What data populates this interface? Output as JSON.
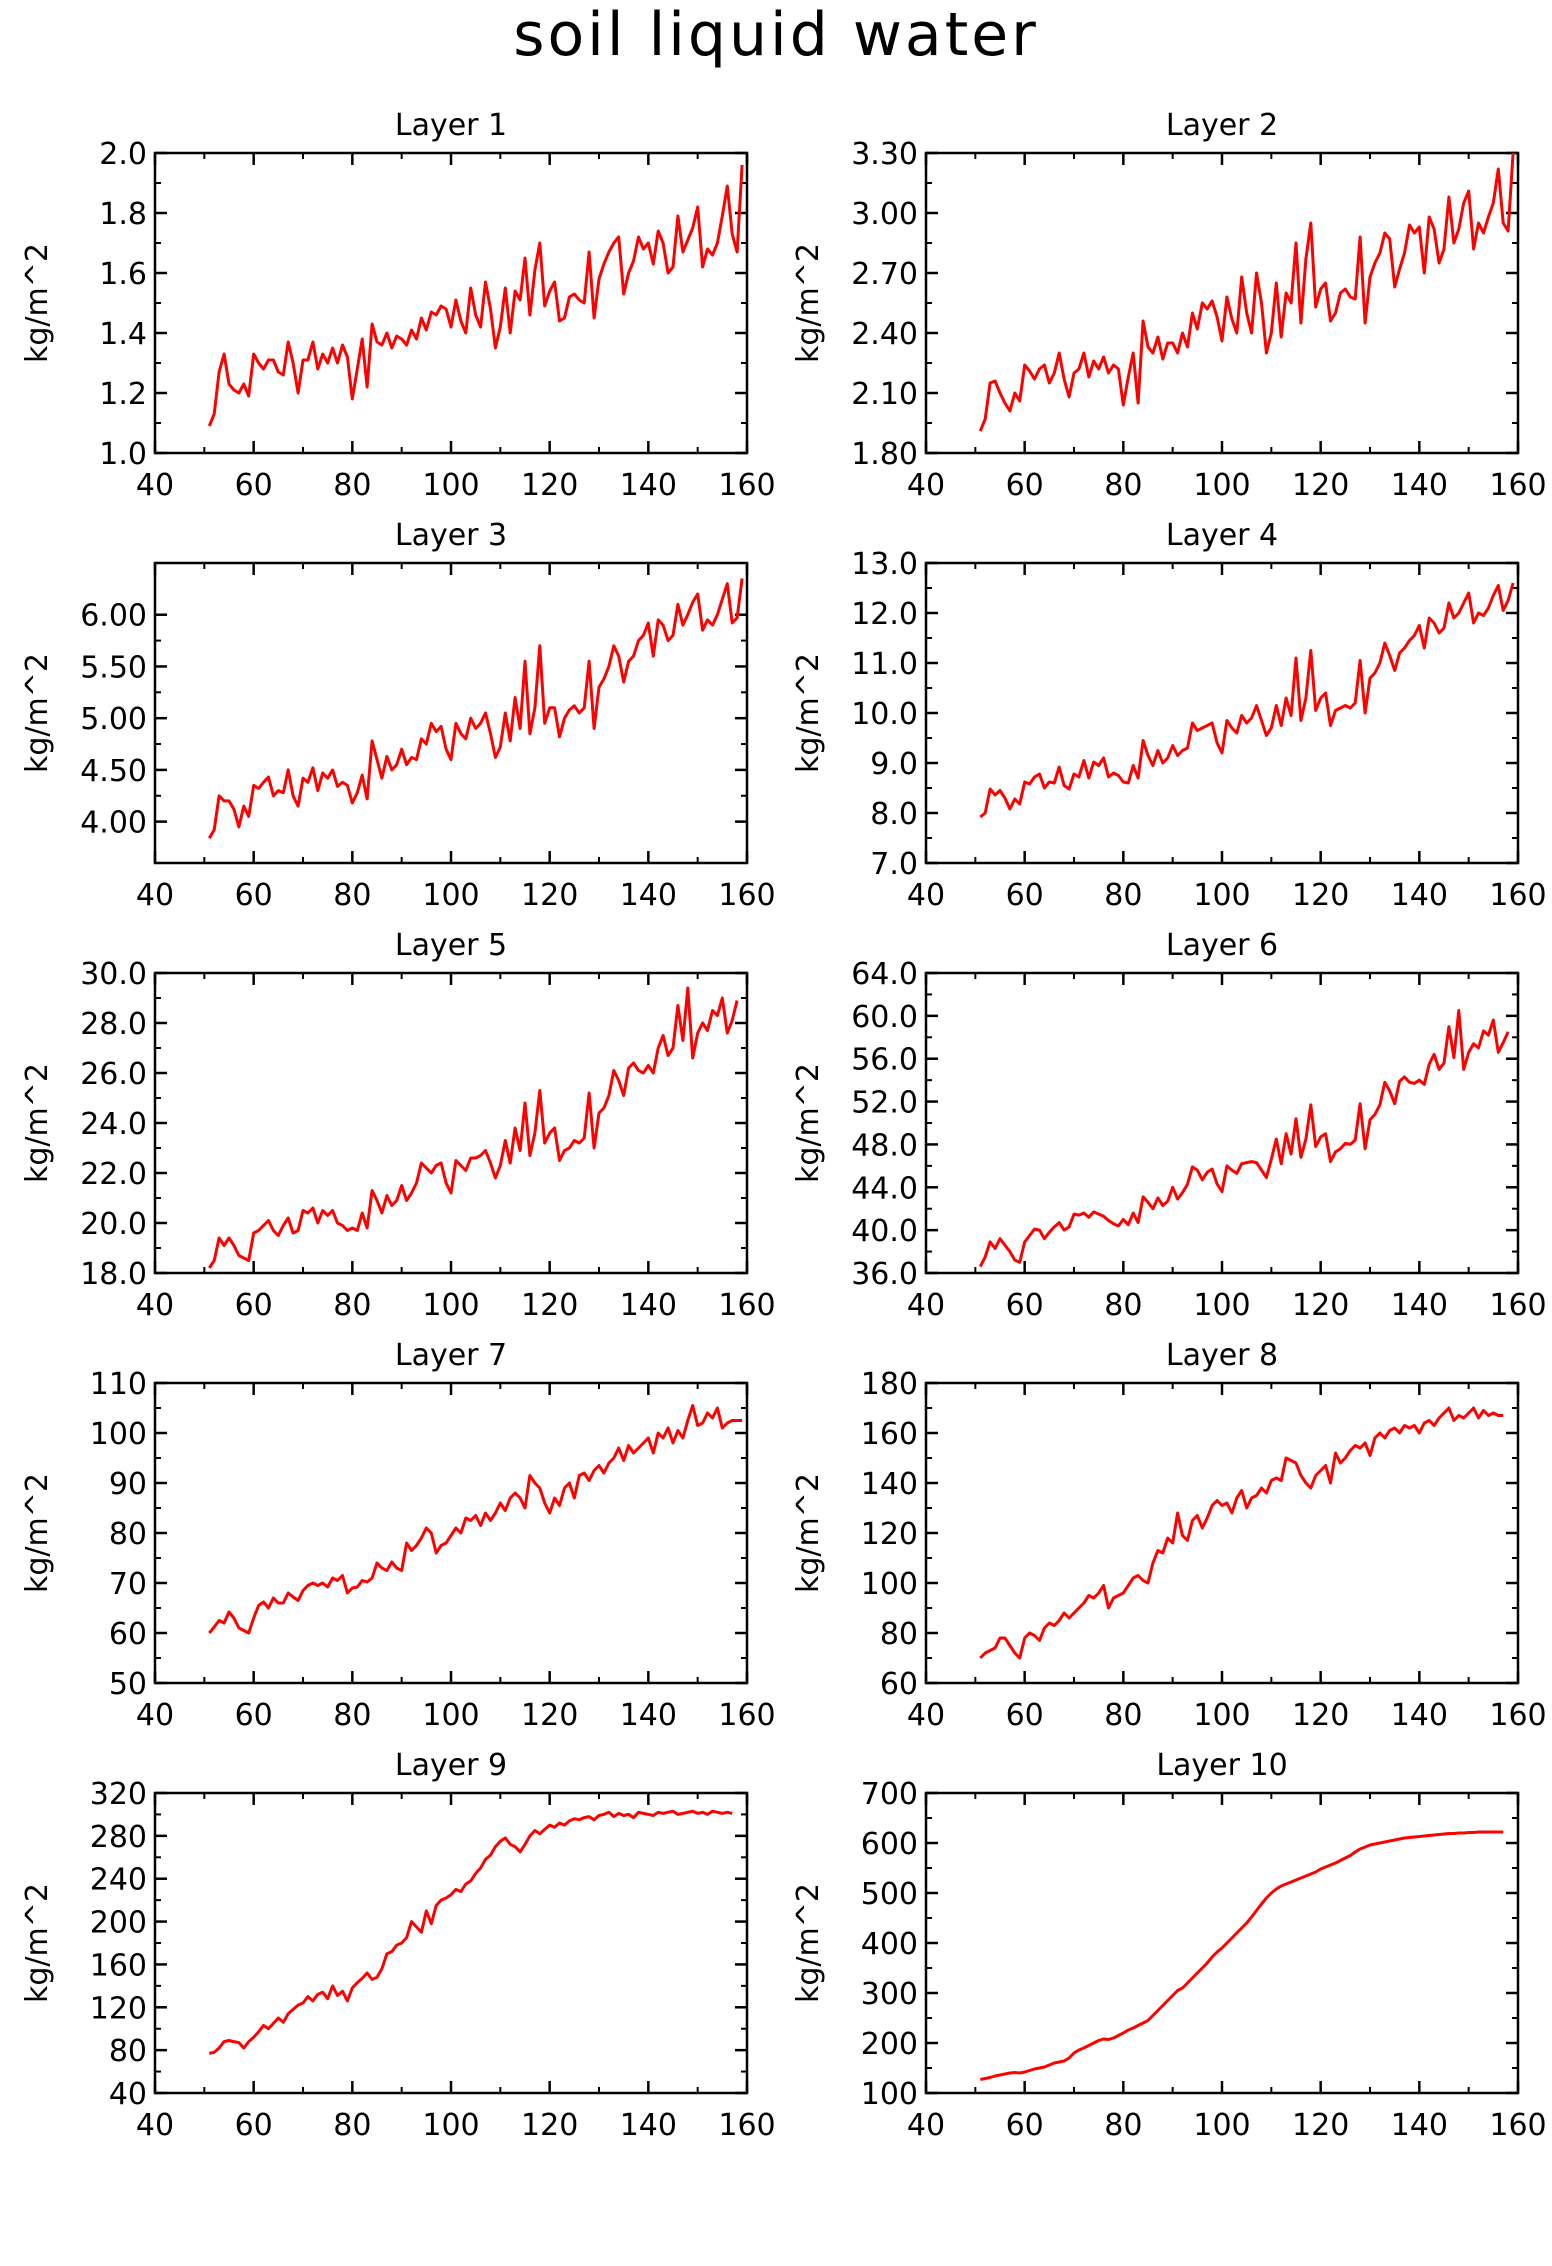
{
  "figure": {
    "title": "soil liquid water",
    "line_color": "#ff0000"
  },
  "chart_data": [
    {
      "type": "line",
      "title": "Layer 1",
      "ylabel": "kg/m^2",
      "xlim": [
        40,
        160
      ],
      "xticks": [
        40,
        60,
        80,
        100,
        120,
        140,
        160
      ],
      "ylim": [
        1.0,
        2.0
      ],
      "yticks": [
        "1.0",
        "1.2",
        "1.4",
        "1.6",
        "1.8",
        "2.0"
      ],
      "x_start": 51,
      "x_step": 1,
      "values": [
        1.09,
        1.13,
        1.27,
        1.33,
        1.23,
        1.21,
        1.2,
        1.23,
        1.19,
        1.33,
        1.3,
        1.28,
        1.31,
        1.31,
        1.27,
        1.26,
        1.37,
        1.3,
        1.2,
        1.31,
        1.31,
        1.37,
        1.28,
        1.33,
        1.3,
        1.35,
        1.3,
        1.36,
        1.32,
        1.18,
        1.28,
        1.38,
        1.22,
        1.43,
        1.37,
        1.36,
        1.4,
        1.35,
        1.39,
        1.38,
        1.36,
        1.41,
        1.38,
        1.45,
        1.41,
        1.47,
        1.46,
        1.49,
        1.48,
        1.42,
        1.51,
        1.44,
        1.4,
        1.55,
        1.46,
        1.42,
        1.57,
        1.48,
        1.35,
        1.42,
        1.55,
        1.4,
        1.54,
        1.51,
        1.65,
        1.46,
        1.61,
        1.7,
        1.49,
        1.54,
        1.57,
        1.44,
        1.45,
        1.52,
        1.53,
        1.51,
        1.5,
        1.67,
        1.45,
        1.58,
        1.63,
        1.67,
        1.7,
        1.72,
        1.53,
        1.6,
        1.64,
        1.72,
        1.68,
        1.7,
        1.63,
        1.74,
        1.7,
        1.6,
        1.62,
        1.79,
        1.67,
        1.71,
        1.75,
        1.82,
        1.62,
        1.68,
        1.66,
        1.7,
        1.79,
        1.89,
        1.73,
        1.67,
        1.96
      ]
    },
    {
      "type": "line",
      "title": "Layer 2",
      "ylabel": "kg/m^2",
      "xlim": [
        40,
        160
      ],
      "xticks": [
        40,
        60,
        80,
        100,
        120,
        140,
        160
      ],
      "ylim": [
        1.8,
        3.3
      ],
      "yticks": [
        "1.80",
        "2.10",
        "2.40",
        "2.70",
        "3.00",
        "3.30"
      ],
      "x_start": 51,
      "x_step": 1,
      "values": [
        1.91,
        1.97,
        2.15,
        2.16,
        2.1,
        2.05,
        2.01,
        2.1,
        2.06,
        2.24,
        2.21,
        2.17,
        2.22,
        2.24,
        2.15,
        2.2,
        2.3,
        2.17,
        2.08,
        2.2,
        2.22,
        2.3,
        2.18,
        2.26,
        2.22,
        2.28,
        2.2,
        2.24,
        2.22,
        2.04,
        2.18,
        2.3,
        2.05,
        2.46,
        2.33,
        2.3,
        2.38,
        2.27,
        2.35,
        2.35,
        2.3,
        2.4,
        2.33,
        2.5,
        2.42,
        2.55,
        2.52,
        2.56,
        2.48,
        2.36,
        2.58,
        2.47,
        2.4,
        2.68,
        2.5,
        2.4,
        2.7,
        2.55,
        2.3,
        2.4,
        2.65,
        2.38,
        2.6,
        2.55,
        2.85,
        2.45,
        2.77,
        2.95,
        2.53,
        2.62,
        2.65,
        2.46,
        2.5,
        2.6,
        2.62,
        2.58,
        2.57,
        2.88,
        2.45,
        2.68,
        2.75,
        2.8,
        2.9,
        2.87,
        2.63,
        2.72,
        2.8,
        2.94,
        2.9,
        2.93,
        2.7,
        2.98,
        2.92,
        2.75,
        2.82,
        3.08,
        2.85,
        2.92,
        3.05,
        3.11,
        2.82,
        2.95,
        2.9,
        2.98,
        3.05,
        3.22,
        2.95,
        2.91,
        3.3
      ]
    },
    {
      "type": "line",
      "title": "Layer 3",
      "ylabel": "kg/m^2",
      "xlim": [
        40,
        160
      ],
      "xticks": [
        40,
        60,
        80,
        100,
        120,
        140,
        160
      ],
      "ylim": [
        3.6,
        6.5
      ],
      "yticks": [
        "4.00",
        "4.50",
        "5.00",
        "5.50",
        "6.00"
      ],
      "ytick_values": [
        4.0,
        4.5,
        5.0,
        5.5,
        6.0
      ],
      "x_start": 51,
      "x_step": 1,
      "values": [
        3.84,
        3.92,
        4.25,
        4.2,
        4.2,
        4.12,
        3.95,
        4.15,
        4.05,
        4.35,
        4.32,
        4.38,
        4.43,
        4.25,
        4.3,
        4.28,
        4.5,
        4.25,
        4.15,
        4.42,
        4.38,
        4.52,
        4.3,
        4.47,
        4.42,
        4.5,
        4.34,
        4.38,
        4.35,
        4.18,
        4.28,
        4.45,
        4.22,
        4.78,
        4.6,
        4.42,
        4.63,
        4.5,
        4.55,
        4.7,
        4.55,
        4.62,
        4.6,
        4.8,
        4.75,
        4.95,
        4.87,
        4.92,
        4.7,
        4.6,
        4.95,
        4.85,
        4.8,
        5.0,
        4.9,
        4.95,
        5.05,
        4.85,
        4.62,
        4.72,
        5.05,
        4.78,
        5.2,
        4.9,
        5.55,
        4.85,
        5.1,
        5.7,
        4.95,
        5.1,
        5.1,
        4.82,
        5.0,
        5.08,
        5.12,
        5.05,
        5.1,
        5.55,
        4.9,
        5.3,
        5.38,
        5.5,
        5.7,
        5.6,
        5.35,
        5.55,
        5.6,
        5.75,
        5.8,
        5.92,
        5.6,
        5.95,
        5.9,
        5.75,
        5.8,
        6.1,
        5.9,
        6.0,
        6.12,
        6.2,
        5.85,
        5.95,
        5.9,
        6.0,
        6.15,
        6.3,
        5.92,
        5.97,
        6.35
      ]
    },
    {
      "type": "line",
      "title": "Layer 4",
      "ylabel": "kg/m^2",
      "xlim": [
        40,
        160
      ],
      "xticks": [
        40,
        60,
        80,
        100,
        120,
        140,
        160
      ],
      "ylim": [
        7.0,
        13.0
      ],
      "yticks": [
        "7.0",
        "8.0",
        "9.0",
        "10.0",
        "11.0",
        "12.0",
        "13.0"
      ],
      "x_start": 51,
      "x_step": 1,
      "values": [
        7.92,
        8.0,
        8.48,
        8.36,
        8.45,
        8.3,
        8.08,
        8.28,
        8.18,
        8.62,
        8.58,
        8.72,
        8.78,
        8.5,
        8.62,
        8.6,
        8.92,
        8.55,
        8.48,
        8.78,
        8.72,
        9.05,
        8.7,
        9.02,
        8.95,
        9.1,
        8.72,
        8.8,
        8.75,
        8.62,
        8.6,
        8.95,
        8.7,
        9.45,
        9.15,
        8.95,
        9.25,
        9.0,
        9.1,
        9.35,
        9.15,
        9.25,
        9.3,
        9.8,
        9.65,
        9.7,
        9.75,
        9.8,
        9.4,
        9.2,
        9.85,
        9.7,
        9.6,
        9.95,
        9.8,
        9.9,
        10.15,
        9.85,
        9.55,
        9.7,
        10.15,
        9.75,
        10.3,
        9.95,
        11.1,
        9.85,
        10.3,
        11.25,
        10.05,
        10.3,
        10.4,
        9.75,
        10.05,
        10.1,
        10.15,
        10.1,
        10.2,
        11.05,
        10.0,
        10.7,
        10.8,
        11.0,
        11.4,
        11.15,
        10.85,
        11.2,
        11.3,
        11.45,
        11.55,
        11.75,
        11.3,
        11.9,
        11.8,
        11.6,
        11.7,
        12.2,
        11.9,
        12.0,
        12.2,
        12.4,
        11.8,
        12.0,
        11.95,
        12.1,
        12.35,
        12.55,
        12.05,
        12.25,
        12.6
      ]
    },
    {
      "type": "line",
      "title": "Layer 5",
      "ylabel": "kg/m^2",
      "xlim": [
        40,
        160
      ],
      "xticks": [
        40,
        60,
        80,
        100,
        120,
        140,
        160
      ],
      "ylim": [
        18.0,
        30.0
      ],
      "yticks": [
        "18.0",
        "20.0",
        "22.0",
        "24.0",
        "26.0",
        "28.0",
        "30.0"
      ],
      "x_start": 51,
      "x_step": 1,
      "values": [
        18.2,
        18.5,
        19.4,
        19.1,
        19.4,
        19.1,
        18.7,
        18.6,
        18.5,
        19.6,
        19.7,
        19.9,
        20.1,
        19.7,
        19.5,
        19.9,
        20.2,
        19.6,
        19.7,
        20.5,
        20.4,
        20.6,
        20.0,
        20.5,
        20.3,
        20.5,
        20.0,
        19.9,
        19.7,
        19.8,
        19.7,
        20.4,
        19.8,
        21.3,
        20.9,
        20.4,
        21.1,
        20.7,
        20.9,
        21.5,
        20.9,
        21.2,
        21.6,
        22.4,
        22.2,
        22.0,
        22.3,
        22.4,
        21.6,
        21.2,
        22.5,
        22.3,
        22.1,
        22.6,
        22.6,
        22.7,
        22.9,
        22.4,
        21.8,
        22.3,
        23.3,
        22.4,
        23.8,
        22.9,
        24.8,
        22.7,
        23.6,
        25.3,
        23.2,
        23.6,
        23.8,
        22.5,
        22.9,
        23.0,
        23.3,
        23.2,
        23.4,
        25.2,
        23.0,
        24.4,
        24.6,
        25.1,
        26.1,
        25.7,
        25.1,
        26.2,
        26.4,
        26.1,
        26.0,
        26.3,
        26.0,
        27.0,
        27.5,
        26.7,
        27.0,
        28.7,
        27.3,
        29.4,
        26.6,
        27.6,
        28.0,
        27.7,
        28.5,
        28.3,
        29.0,
        27.6,
        28.1,
        28.9
      ]
    },
    {
      "type": "line",
      "title": "Layer 6",
      "ylabel": "kg/m^2",
      "xlim": [
        40,
        160
      ],
      "xticks": [
        40,
        60,
        80,
        100,
        120,
        140,
        160
      ],
      "ylim": [
        36.0,
        64.0
      ],
      "yticks": [
        "36.0",
        "40.0",
        "44.0",
        "48.0",
        "52.0",
        "56.0",
        "60.0",
        "64.0"
      ],
      "x_start": 51,
      "x_step": 1,
      "values": [
        36.6,
        37.5,
        38.9,
        38.3,
        39.2,
        38.6,
        38.0,
        37.2,
        37.0,
        38.9,
        39.5,
        40.1,
        40.0,
        39.2,
        39.8,
        40.3,
        40.7,
        40.0,
        40.3,
        41.5,
        41.4,
        41.6,
        41.2,
        41.7,
        41.5,
        41.3,
        40.9,
        40.6,
        40.4,
        41.0,
        40.5,
        41.6,
        40.7,
        43.1,
        42.6,
        42.0,
        43.0,
        42.3,
        42.7,
        44.0,
        42.9,
        43.5,
        44.3,
        45.9,
        45.6,
        44.7,
        45.4,
        45.7,
        44.3,
        43.6,
        46.0,
        45.6,
        45.3,
        46.2,
        46.3,
        46.4,
        46.3,
        45.6,
        44.9,
        46.6,
        48.5,
        46.2,
        49.0,
        47.1,
        50.4,
        46.8,
        48.5,
        51.7,
        47.8,
        48.7,
        49.0,
        46.4,
        47.3,
        47.6,
        48.1,
        48.0,
        48.4,
        51.8,
        47.6,
        50.3,
        50.8,
        51.7,
        53.8,
        53.0,
        51.8,
        53.9,
        54.3,
        53.8,
        53.7,
        54.0,
        53.6,
        55.5,
        56.4,
        55.0,
        55.6,
        59.0,
        56.1,
        60.5,
        55.0,
        56.6,
        57.4,
        57.0,
        58.6,
        58.2,
        59.6,
        56.6,
        57.5,
        58.5
      ]
    },
    {
      "type": "line",
      "title": "Layer 7",
      "ylabel": "kg/m^2",
      "xlim": [
        40,
        160
      ],
      "xticks": [
        40,
        60,
        80,
        100,
        120,
        140,
        160
      ],
      "ylim": [
        50,
        110
      ],
      "yticks": [
        "50",
        "60",
        "70",
        "80",
        "90",
        "100",
        "110"
      ],
      "x_start": 51,
      "x_step": 1,
      "values": [
        60.0,
        61.2,
        62.5,
        62.0,
        64.2,
        63.0,
        61.0,
        60.5,
        60.0,
        63.0,
        65.5,
        66.2,
        65.0,
        67.0,
        66.0,
        66.0,
        68.0,
        67.2,
        66.5,
        68.5,
        69.5,
        70.0,
        69.5,
        70.0,
        69.2,
        71.0,
        70.5,
        71.5,
        68.0,
        69.0,
        69.2,
        70.5,
        70.2,
        71.0,
        74.0,
        73.0,
        72.5,
        74.2,
        73.0,
        72.5,
        78.0,
        76.5,
        77.5,
        79.0,
        81.0,
        80.0,
        76.0,
        77.5,
        78.0,
        79.5,
        81.0,
        80.0,
        83.0,
        82.5,
        83.5,
        81.5,
        84.0,
        82.5,
        84.0,
        86.0,
        84.5,
        87.0,
        88.0,
        87.0,
        85.0,
        91.5,
        90.0,
        89.0,
        86.0,
        84.0,
        87.0,
        85.5,
        89.0,
        90.0,
        87.0,
        91.5,
        92.0,
        90.5,
        92.5,
        93.5,
        92.0,
        94.0,
        95.0,
        97.0,
        94.5,
        97.5,
        96.0,
        97.0,
        98.0,
        99.0,
        96.0,
        100.0,
        99.0,
        101.0,
        98.0,
        100.5,
        99.0,
        102.5,
        105.5,
        101.5,
        102.0,
        104.0,
        103.0,
        105.0,
        101.0,
        102.0,
        102.5,
        102.5,
        102.5
      ]
    },
    {
      "type": "line",
      "title": "Layer 8",
      "ylabel": "kg/m^2",
      "xlim": [
        40,
        160
      ],
      "xticks": [
        40,
        60,
        80,
        100,
        120,
        140,
        160
      ],
      "ylim": [
        60,
        180
      ],
      "yticks": [
        "60",
        "80",
        "100",
        "120",
        "140",
        "160",
        "180"
      ],
      "x_start": 51,
      "x_step": 1,
      "values": [
        70,
        72,
        73,
        74,
        78,
        78,
        75,
        72,
        70,
        78,
        80,
        79,
        77,
        82,
        84,
        83,
        85,
        88,
        86,
        88,
        90,
        92,
        95,
        94,
        96,
        99,
        90,
        94,
        95,
        96,
        99,
        102,
        103,
        101,
        100,
        108,
        113,
        112,
        118,
        116,
        128,
        119,
        117,
        125,
        127,
        122,
        126,
        131,
        133,
        131,
        132,
        128,
        134,
        137,
        130,
        134,
        135,
        138,
        136,
        141,
        142,
        141,
        150,
        149,
        148,
        143,
        140,
        138,
        143,
        145,
        147,
        140,
        152,
        148,
        150,
        153,
        155,
        154,
        156,
        151,
        158,
        160,
        158,
        161,
        162,
        160,
        163,
        162,
        163,
        160,
        164,
        165,
        163,
        166,
        168,
        170,
        165,
        167,
        166,
        168,
        170,
        166,
        169,
        167,
        168,
        167,
        167
      ]
    },
    {
      "type": "line",
      "title": "Layer 9",
      "ylabel": "kg/m^2",
      "xlim": [
        40,
        160
      ],
      "xticks": [
        40,
        60,
        80,
        100,
        120,
        140,
        160
      ],
      "ylim": [
        40,
        320
      ],
      "yticks": [
        "40",
        "80",
        "120",
        "160",
        "200",
        "240",
        "280",
        "320"
      ],
      "x_start": 51,
      "x_step": 1,
      "values": [
        77,
        78,
        82,
        88,
        89,
        88,
        87,
        82,
        88,
        92,
        97,
        103,
        100,
        105,
        110,
        106,
        114,
        118,
        122,
        124,
        130,
        126,
        132,
        134,
        128,
        140,
        131,
        135,
        126,
        138,
        143,
        147,
        152,
        146,
        148,
        156,
        170,
        172,
        178,
        180,
        185,
        200,
        195,
        190,
        210,
        198,
        215,
        220,
        222,
        225,
        230,
        228,
        235,
        238,
        245,
        250,
        258,
        262,
        270,
        275,
        278,
        272,
        270,
        265,
        272,
        280,
        285,
        282,
        286,
        290,
        288,
        292,
        290,
        294,
        296,
        295,
        297,
        298,
        295,
        299,
        300,
        302,
        298,
        301,
        299,
        300,
        297,
        302,
        301,
        300,
        299,
        302,
        301,
        302,
        303,
        300,
        301,
        302,
        303,
        301,
        302,
        300,
        303,
        302,
        301,
        302,
        301
      ]
    },
    {
      "type": "line",
      "title": "Layer 10",
      "ylabel": "kg/m^2",
      "xlim": [
        40,
        160
      ],
      "xticks": [
        40,
        60,
        80,
        100,
        120,
        140,
        160
      ],
      "ylim": [
        100,
        700
      ],
      "yticks": [
        "100",
        "200",
        "300",
        "400",
        "500",
        "600",
        "700"
      ],
      "x_start": 51,
      "x_step": 1,
      "values": [
        127,
        129,
        131,
        134,
        136,
        138,
        140,
        141,
        140,
        142,
        145,
        148,
        150,
        152,
        156,
        160,
        162,
        164,
        170,
        180,
        186,
        190,
        195,
        200,
        205,
        208,
        207,
        210,
        215,
        220,
        226,
        230,
        235,
        240,
        245,
        255,
        265,
        275,
        285,
        295,
        305,
        310,
        320,
        330,
        340,
        350,
        360,
        372,
        382,
        390,
        400,
        410,
        420,
        430,
        440,
        452,
        465,
        478,
        490,
        500,
        508,
        514,
        518,
        522,
        526,
        530,
        534,
        538,
        542,
        548,
        552,
        556,
        560,
        565,
        570,
        575,
        582,
        588,
        592,
        596,
        598,
        600,
        602,
        604,
        606,
        608,
        610,
        611,
        612,
        613,
        614,
        615,
        616,
        617,
        618,
        619,
        619,
        620,
        620,
        621,
        621,
        622,
        622,
        622,
        622,
        622,
        622
      ]
    }
  ]
}
